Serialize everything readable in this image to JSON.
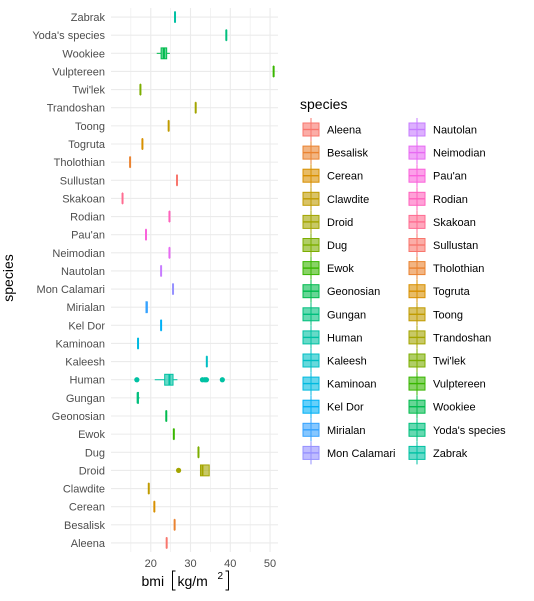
{
  "chart_data": {
    "type": "boxplot",
    "orientation": "horizontal",
    "xlabel_prefix": "bmi",
    "xlabel_unit": "kg/m",
    "xlabel_unit_superscript": "2",
    "ylabel": "species",
    "xlim": [
      10,
      52
    ],
    "x_ticks": [
      20,
      30,
      40,
      50
    ],
    "grid": true,
    "legend_position": "right",
    "legend_title": "species",
    "categories": [
      "Aleena",
      "Besalisk",
      "Cerean",
      "Clawdite",
      "Droid",
      "Dug",
      "Ewok",
      "Geonosian",
      "Gungan",
      "Human",
      "Kaleesh",
      "Kaminoan",
      "Kel Dor",
      "Mirialan",
      "Mon Calamari",
      "Nautolan",
      "Neimodian",
      "Pau'an",
      "Rodian",
      "Skakoan",
      "Sullustan",
      "Tholothian",
      "Togruta",
      "Toong",
      "Trandoshan",
      "Twi'lek",
      "Vulptereen",
      "Wookiee",
      "Yoda's species",
      "Zabrak"
    ],
    "boxes": [
      {
        "species": "Aleena",
        "color": "#F8766D",
        "min": 24.0,
        "q1": 24.0,
        "median": 24.0,
        "q3": 24.0,
        "max": 24.0,
        "outliers": []
      },
      {
        "species": "Besalisk",
        "color": "#EA8331",
        "min": 26.0,
        "q1": 26.0,
        "median": 26.0,
        "q3": 26.0,
        "max": 26.0,
        "outliers": []
      },
      {
        "species": "Cerean",
        "color": "#D89000",
        "min": 20.9,
        "q1": 20.9,
        "median": 20.9,
        "q3": 20.9,
        "max": 20.9,
        "outliers": []
      },
      {
        "species": "Clawdite",
        "color": "#C09B00",
        "min": 19.5,
        "q1": 19.5,
        "median": 19.5,
        "q3": 19.5,
        "max": 19.5,
        "outliers": []
      },
      {
        "species": "Droid",
        "color": "#A3A500",
        "min": 32.5,
        "q1": 32.5,
        "median": 33.0,
        "q3": 34.7,
        "max": 34.7,
        "outliers": [
          27.0
        ]
      },
      {
        "species": "Dug",
        "color": "#7CAE00",
        "min": 32.0,
        "q1": 32.0,
        "median": 32.0,
        "q3": 32.0,
        "max": 32.0,
        "outliers": []
      },
      {
        "species": "Ewok",
        "color": "#39B600",
        "min": 25.8,
        "q1": 25.8,
        "median": 25.8,
        "q3": 25.8,
        "max": 25.8,
        "outliers": []
      },
      {
        "species": "Geonosian",
        "color": "#00BB4E",
        "min": 23.9,
        "q1": 23.9,
        "median": 23.9,
        "q3": 23.9,
        "max": 23.9,
        "outliers": []
      },
      {
        "species": "Gungan",
        "color": "#00BF7D",
        "min": 16.7,
        "q1": 16.7,
        "median": 16.7,
        "q3": 16.9,
        "max": 17.2,
        "outliers": []
      },
      {
        "species": "Human",
        "color": "#00C1A3",
        "min": 21.0,
        "q1": 23.5,
        "median": 24.7,
        "q3": 25.6,
        "max": 26.7,
        "outliers": [
          16.5,
          33.0,
          33.6,
          34.0,
          38.0
        ]
      },
      {
        "species": "Kaleesh",
        "color": "#00BFC4",
        "min": 34.1,
        "q1": 34.1,
        "median": 34.1,
        "q3": 34.1,
        "max": 34.1,
        "outliers": []
      },
      {
        "species": "Kaminoan",
        "color": "#00BAE0",
        "min": 16.8,
        "q1": 16.8,
        "median": 16.8,
        "q3": 16.8,
        "max": 16.8,
        "outliers": []
      },
      {
        "species": "Kel Dor",
        "color": "#00B0F6",
        "min": 22.6,
        "q1": 22.6,
        "median": 22.6,
        "q3": 22.6,
        "max": 22.6,
        "outliers": []
      },
      {
        "species": "Mirialan",
        "color": "#35A2FF",
        "min": 18.8,
        "q1": 18.8,
        "median": 19.0,
        "q3": 19.1,
        "max": 19.1,
        "outliers": []
      },
      {
        "species": "Mon Calamari",
        "color": "#9590FF",
        "min": 25.6,
        "q1": 25.6,
        "median": 25.6,
        "q3": 25.6,
        "max": 25.6,
        "outliers": []
      },
      {
        "species": "Nautolan",
        "color": "#C77CFF",
        "min": 22.6,
        "q1": 22.6,
        "median": 22.6,
        "q3": 22.6,
        "max": 22.6,
        "outliers": []
      },
      {
        "species": "Neimodian",
        "color": "#E76BF3",
        "min": 24.7,
        "q1": 24.7,
        "median": 24.7,
        "q3": 24.7,
        "max": 24.7,
        "outliers": []
      },
      {
        "species": "Pau'an",
        "color": "#FA62DB",
        "min": 18.8,
        "q1": 18.8,
        "median": 18.8,
        "q3": 18.8,
        "max": 18.8,
        "outliers": []
      },
      {
        "species": "Rodian",
        "color": "#FF62BC",
        "min": 24.7,
        "q1": 24.7,
        "median": 24.7,
        "q3": 24.7,
        "max": 24.7,
        "outliers": []
      },
      {
        "species": "Skakoan",
        "color": "#FF6C91",
        "min": 12.9,
        "q1": 12.9,
        "median": 12.9,
        "q3": 12.9,
        "max": 12.9,
        "outliers": []
      },
      {
        "species": "Sullustan",
        "color": "#F8766D",
        "min": 26.6,
        "q1": 26.6,
        "median": 26.6,
        "q3": 26.6,
        "max": 26.6,
        "outliers": []
      },
      {
        "species": "Tholothian",
        "color": "#EA8331",
        "min": 14.8,
        "q1": 14.8,
        "median": 14.8,
        "q3": 14.8,
        "max": 14.8,
        "outliers": []
      },
      {
        "species": "Togruta",
        "color": "#D89000",
        "min": 17.9,
        "q1": 17.9,
        "median": 17.9,
        "q3": 17.9,
        "max": 17.9,
        "outliers": []
      },
      {
        "species": "Toong",
        "color": "#C09B00",
        "min": 24.5,
        "q1": 24.5,
        "median": 24.5,
        "q3": 24.5,
        "max": 24.5,
        "outliers": []
      },
      {
        "species": "Trandoshan",
        "color": "#A3A500",
        "min": 31.3,
        "q1": 31.3,
        "median": 31.3,
        "q3": 31.3,
        "max": 31.3,
        "outliers": []
      },
      {
        "species": "Twi'lek",
        "color": "#7CAE00",
        "min": 17.4,
        "q1": 17.4,
        "median": 17.4,
        "q3": 17.4,
        "max": 17.4,
        "outliers": []
      },
      {
        "species": "Vulptereen",
        "color": "#39B600",
        "min": 50.9,
        "q1": 50.9,
        "median": 50.9,
        "q3": 50.9,
        "max": 50.9,
        "outliers": []
      },
      {
        "species": "Wookiee",
        "color": "#00BB4E",
        "min": 21.5,
        "q1": 22.6,
        "median": 23.3,
        "q3": 24.0,
        "max": 24.8,
        "outliers": []
      },
      {
        "species": "Yoda's species",
        "color": "#00BF7D",
        "min": 39.0,
        "q1": 39.0,
        "median": 39.0,
        "q3": 39.0,
        "max": 39.0,
        "outliers": []
      },
      {
        "species": "Zabrak",
        "color": "#00C1A3",
        "min": 26.1,
        "q1": 26.1,
        "median": 26.1,
        "q3": 26.1,
        "max": 26.1,
        "outliers": []
      }
    ]
  }
}
